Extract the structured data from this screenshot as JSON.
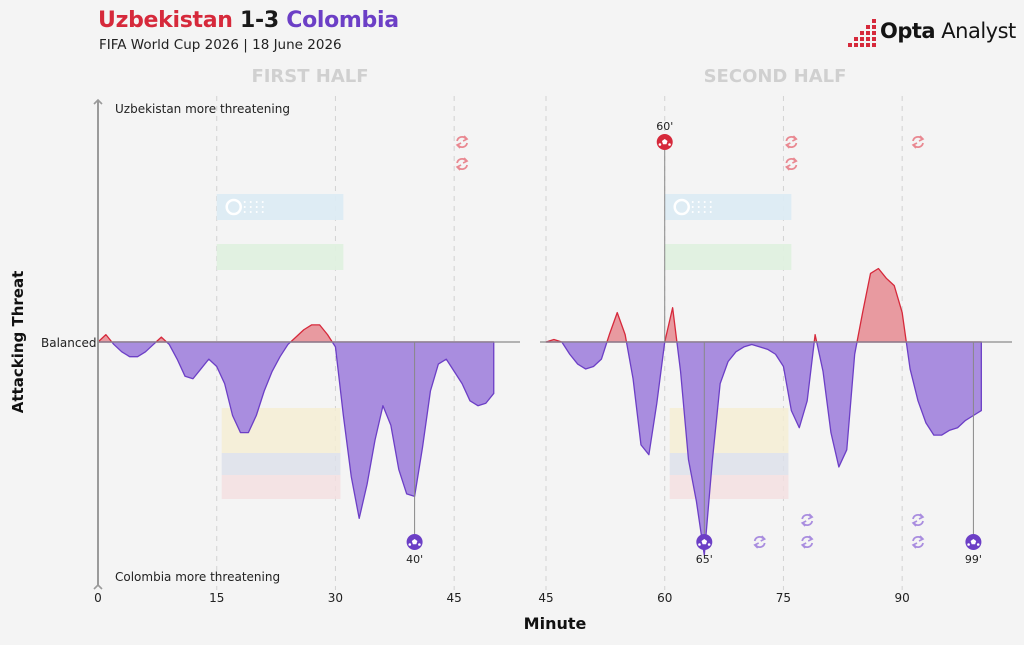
{
  "header": {
    "home_team": "Uzbekistan",
    "score": "1-3",
    "away_team": "Colombia",
    "subtitle": "FIFA World Cup 2026 | 18 June 2026",
    "logo_strong": "Opta",
    "logo_light": "Analyst"
  },
  "colors": {
    "home": "#d6293b",
    "away": "#6c3fc6",
    "home_fill": "#e89aa0",
    "away_fill": "#a98ddf"
  },
  "chart_data": {
    "type": "area",
    "xlabel": "Minute",
    "ylabel": "Attacking Threat",
    "y_top_label": "Uzbekistan more threatening",
    "y_mid_label": "Balanced",
    "y_bottom_label": "Colombia more threatening",
    "ylim": [
      -1,
      1
    ],
    "grid": "vertical dashed lines at 15, 30, 45 (first half) and 60, 75, 90 (second half)",
    "halves": [
      {
        "label": "FIRST HALF",
        "xlim": [
          0,
          50
        ],
        "ticks": [
          "0",
          "15",
          "30",
          "45"
        ],
        "tick_values": [
          0,
          15,
          30,
          45
        ],
        "x": [
          0,
          1,
          2,
          3,
          4,
          5,
          6,
          7,
          8,
          9,
          10,
          11,
          12,
          13,
          14,
          15,
          16,
          17,
          18,
          19,
          20,
          21,
          22,
          23,
          24,
          25,
          26,
          27,
          28,
          29,
          30,
          31,
          32,
          33,
          34,
          35,
          36,
          37,
          38,
          39,
          40,
          41,
          42,
          43,
          44,
          45,
          46,
          47,
          48,
          49,
          50
        ],
        "y": [
          0,
          0.03,
          -0.01,
          -0.04,
          -0.06,
          -0.06,
          -0.04,
          -0.01,
          0.02,
          -0.01,
          -0.07,
          -0.14,
          -0.15,
          -0.11,
          -0.07,
          -0.1,
          -0.17,
          -0.3,
          -0.37,
          -0.37,
          -0.3,
          -0.2,
          -0.12,
          -0.06,
          -0.01,
          0.02,
          0.05,
          0.07,
          0.07,
          0.03,
          -0.02,
          -0.3,
          -0.55,
          -0.72,
          -0.58,
          -0.4,
          -0.26,
          -0.34,
          -0.52,
          -0.62,
          -0.63,
          -0.43,
          -0.2,
          -0.09,
          -0.07,
          -0.12,
          -0.17,
          -0.24,
          -0.26,
          -0.25,
          -0.21
        ]
      },
      {
        "label": "SECOND HALF",
        "xlim": [
          45,
          100
        ],
        "ticks": [
          "45",
          "60",
          "75",
          "90"
        ],
        "tick_values": [
          45,
          60,
          75,
          90
        ],
        "x": [
          45,
          46,
          47,
          48,
          49,
          50,
          51,
          52,
          53,
          54,
          55,
          56,
          57,
          58,
          59,
          60,
          61,
          62,
          63,
          64,
          65,
          66,
          67,
          68,
          69,
          70,
          71,
          72,
          73,
          74,
          75,
          76,
          77,
          78,
          79,
          80,
          81,
          82,
          83,
          84,
          85,
          86,
          87,
          88,
          89,
          90,
          91,
          92,
          93,
          94,
          95,
          96,
          97,
          98,
          99,
          100
        ],
        "y": [
          0,
          0.01,
          0,
          -0.05,
          -0.09,
          -0.11,
          -0.1,
          -0.07,
          0.03,
          0.12,
          0.03,
          -0.15,
          -0.42,
          -0.46,
          -0.25,
          0,
          0.14,
          -0.12,
          -0.48,
          -0.65,
          -0.87,
          -0.49,
          -0.17,
          -0.08,
          -0.04,
          -0.02,
          -0.01,
          -0.02,
          -0.03,
          -0.05,
          -0.1,
          -0.28,
          -0.35,
          -0.24,
          0.03,
          -0.12,
          -0.37,
          -0.51,
          -0.44,
          -0.05,
          0.12,
          0.28,
          0.3,
          0.26,
          0.23,
          0.12,
          -0.11,
          -0.24,
          -0.33,
          -0.38,
          -0.38,
          -0.36,
          -0.35,
          -0.32,
          -0.3,
          -0.28
        ]
      }
    ],
    "goals": [
      {
        "team": "Colombia",
        "minute": 40,
        "label": "40'"
      },
      {
        "team": "Uzbekistan",
        "minute": 60,
        "label": "60'"
      },
      {
        "team": "Colombia",
        "minute": 65,
        "label": "65'"
      },
      {
        "team": "Colombia",
        "minute": 99,
        "label": "99'"
      }
    ],
    "substitutions": [
      {
        "team": "Uzbekistan",
        "minute": 46,
        "count": 2
      },
      {
        "team": "Uzbekistan",
        "minute": 76,
        "count": 2
      },
      {
        "team": "Uzbekistan",
        "minute": 92,
        "count": 1
      },
      {
        "team": "Colombia",
        "minute": 72,
        "count": 1
      },
      {
        "team": "Colombia",
        "minute": 78,
        "count": 2
      },
      {
        "team": "Colombia",
        "minute": 92,
        "count": 2
      }
    ],
    "formation_periods": [
      {
        "team": "Uzbekistan",
        "half": 0,
        "start": 15,
        "end": 31
      },
      {
        "team": "Uzbekistan",
        "half": 1,
        "start": 60,
        "end": 76
      },
      {
        "team": "Colombia",
        "half": 0,
        "start": 15,
        "end": 30
      },
      {
        "team": "Colombia",
        "half": 1,
        "start": 60,
        "end": 75
      }
    ]
  }
}
